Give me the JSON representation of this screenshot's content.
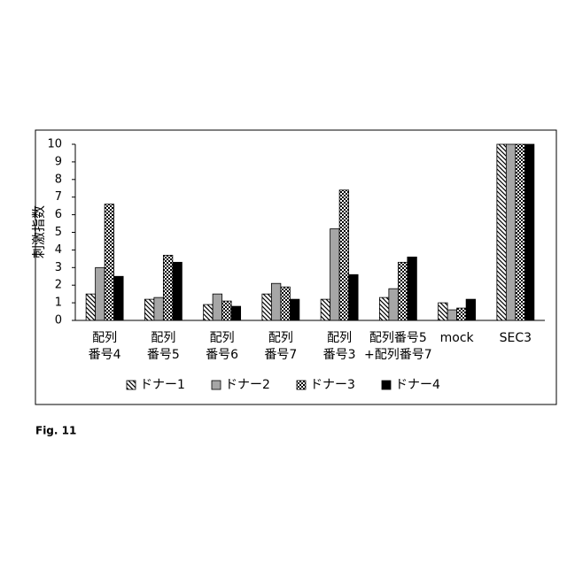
{
  "chart_data": {
    "type": "bar",
    "ylabel": "刺激指数",
    "caption": "Fig. 11",
    "categories": [
      [
        "配列",
        "番号4"
      ],
      [
        "配列",
        "番号5"
      ],
      [
        "配列",
        "番号6"
      ],
      [
        "配列",
        "番号7"
      ],
      [
        "配列",
        "番号3"
      ],
      [
        "配列番号5",
        "+配列番号7"
      ],
      [
        "mock"
      ],
      [
        "SEC3"
      ]
    ],
    "series": [
      {
        "name": "ドナー1",
        "color": "#000000",
        "pattern": "hatch",
        "values": [
          1.5,
          1.2,
          0.9,
          1.5,
          1.2,
          1.3,
          1.0,
          10
        ]
      },
      {
        "name": "ドナー2",
        "color": "#a6a6a6",
        "pattern": "solid",
        "values": [
          3.0,
          1.3,
          1.5,
          2.1,
          5.2,
          1.8,
          0.6,
          10
        ]
      },
      {
        "name": "ドナー3",
        "color": "#000000",
        "pattern": "checker",
        "values": [
          6.6,
          3.7,
          1.1,
          1.9,
          7.4,
          3.3,
          0.7,
          10
        ]
      },
      {
        "name": "ドナー4",
        "color": "#000000",
        "pattern": "solid",
        "values": [
          2.5,
          3.3,
          0.8,
          1.2,
          2.6,
          3.6,
          1.2,
          10
        ]
      }
    ],
    "ylim": [
      0,
      10
    ],
    "yticks": [
      0,
      1,
      2,
      3,
      4,
      5,
      6,
      7,
      8,
      9,
      10
    ],
    "grid": false,
    "legend": "bottom"
  }
}
